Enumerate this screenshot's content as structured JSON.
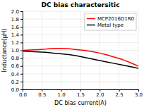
{
  "chart_data": {
    "type": "line",
    "title": "DC bias charactersitic",
    "xlabel": "DC bias current(A)",
    "ylabel": "Inductance(μH)",
    "x": [
      0,
      0.2,
      0.4,
      0.6,
      0.8,
      1.0,
      1.2,
      1.4,
      1.6,
      1.8,
      2.0,
      2.2,
      2.4,
      2.6,
      2.8,
      3.0
    ],
    "series": [
      {
        "name": "MCP2016D1R0",
        "color": "#ff0000",
        "values": [
          1.0,
          1.01,
          1.02,
          1.03,
          1.05,
          1.05,
          1.04,
          1.02,
          1.0,
          0.97,
          0.93,
          0.88,
          0.82,
          0.76,
          0.68,
          0.6
        ]
      },
      {
        "name": "Metal type",
        "color": "#000000",
        "values": [
          0.98,
          0.97,
          0.96,
          0.95,
          0.93,
          0.91,
          0.89,
          0.86,
          0.82,
          0.78,
          0.74,
          0.7,
          0.66,
          0.62,
          0.58,
          0.54
        ]
      }
    ],
    "xlim": [
      0,
      3
    ],
    "ylim": [
      0,
      2
    ],
    "xticks": [
      {
        "value": 0,
        "label": "0.0"
      },
      0.5,
      {
        "value": 1.0,
        "label": "1.0"
      },
      1.5,
      {
        "value": 2.0,
        "label": "2.0"
      },
      2.5,
      {
        "value": 3.0,
        "label": "3.0"
      }
    ],
    "yticks": [
      {
        "value": 0,
        "label": "0.0"
      },
      0.2,
      0.4,
      0.6,
      0.8,
      {
        "value": 1.0,
        "label": "1.0"
      },
      1.2,
      1.4,
      1.6,
      1.8,
      {
        "value": 2.0,
        "label": "2.0"
      }
    ],
    "grid": true,
    "legend": "top-right"
  }
}
